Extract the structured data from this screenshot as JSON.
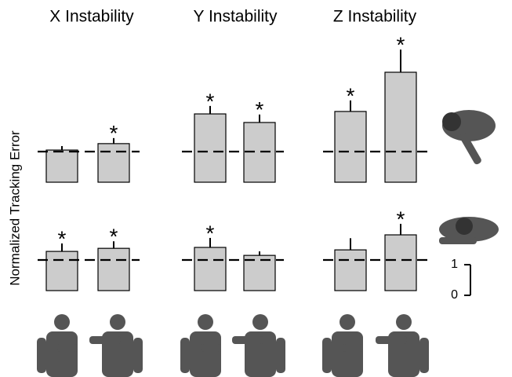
{
  "ylabel": "Normalized Tracking Error",
  "scale_bar": {
    "ticks": [
      0,
      1
    ]
  },
  "chart_data": [
    {
      "type": "bar",
      "title": "X Instability",
      "values": [
        1.05,
        1.26
      ],
      "errors": [
        0.13,
        0.18
      ],
      "reference_line": 1,
      "annotations": [
        {
          "index": 1,
          "text": "*"
        }
      ],
      "color": "#cccccc"
    },
    {
      "type": "bar",
      "title": "Y Instability",
      "values": [
        2.23,
        1.95
      ],
      "errors": [
        0.26,
        0.26
      ],
      "reference_line": 1,
      "annotations": [
        {
          "index": 0,
          "text": "*"
        },
        {
          "index": 1,
          "text": "*"
        }
      ],
      "color": "#cccccc"
    },
    {
      "type": "bar",
      "title": "Z Instability",
      "values": [
        2.31,
        3.59
      ],
      "errors": [
        0.36,
        0.74
      ],
      "reference_line": 1,
      "annotations": [
        {
          "index": 0,
          "text": "*"
        },
        {
          "index": 1,
          "text": "*"
        }
      ],
      "color": "#cccccc"
    },
    {
      "type": "bar",
      "values": [
        1.28,
        1.38
      ],
      "errors": [
        0.26,
        0.23
      ],
      "reference_line": 1,
      "annotations": [
        {
          "index": 0,
          "text": "*"
        },
        {
          "index": 1,
          "text": "*"
        }
      ],
      "color": "#cccccc"
    },
    {
      "type": "bar",
      "values": [
        1.41,
        1.15
      ],
      "errors": [
        0.31,
        0.13
      ],
      "reference_line": 1,
      "annotations": [
        {
          "index": 0,
          "text": "*"
        }
      ],
      "color": "#cccccc"
    },
    {
      "type": "bar",
      "values": [
        1.33,
        1.82
      ],
      "errors": [
        0.38,
        0.36
      ],
      "reference_line": 1,
      "annotations": [
        {
          "index": 1,
          "text": "*"
        }
      ],
      "color": "#cccccc"
    }
  ]
}
